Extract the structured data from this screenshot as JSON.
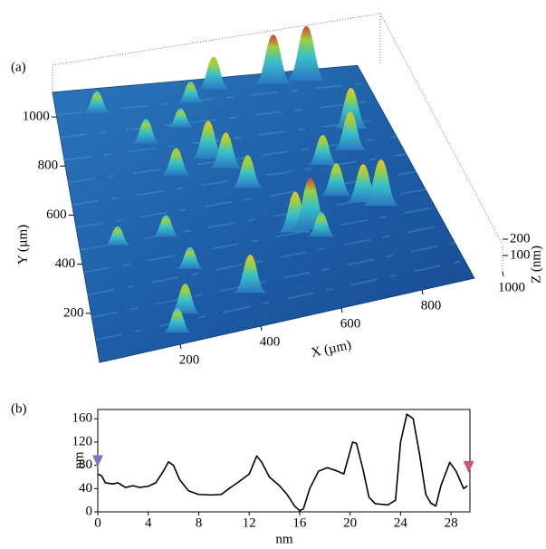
{
  "chart_data": [
    {
      "type": "surface3d",
      "title": "(a)",
      "xlabel": "X (µm)",
      "ylabel": "Y (µm)",
      "zlabel": "Z (nm)",
      "xlim": [
        0,
        1000
      ],
      "ylim": [
        0,
        1100
      ],
      "zlim": [
        0,
        250
      ],
      "xticks": [
        200,
        400,
        600,
        800,
        1000
      ],
      "yticks": [
        200,
        400,
        600,
        800,
        1000
      ],
      "zticks": [
        100,
        200
      ],
      "color": "#1f5fa8",
      "peaks": {
        "x": [
          760,
          660,
          480,
          400,
          120,
          350,
          240,
          820,
          400,
          440,
          300,
          790,
          700,
          480,
          700,
          100,
          230,
          760,
          800,
          560,
          600,
          620,
          270,
          400,
          230,
          200
        ],
        "y": [
          1050,
          1050,
          1050,
          1000,
          1000,
          900,
          850,
          800,
          750,
          700,
          700,
          700,
          650,
          600,
          500,
          450,
          450,
          450,
          420,
          370,
          370,
          330,
          300,
          150,
          120,
          50
        ],
        "z": [
          200,
          180,
          120,
          80,
          80,
          70,
          90,
          150,
          140,
          130,
          100,
          140,
          110,
          120,
          120,
          70,
          80,
          140,
          170,
          150,
          190,
          90,
          80,
          140,
          110,
          90
        ]
      }
    },
    {
      "type": "line",
      "title": "(b)",
      "xlabel": "nm",
      "ylabel": "nm",
      "xlim": [
        0,
        29.5
      ],
      "ylim": [
        0,
        176
      ],
      "xticks": [
        0,
        4,
        8,
        12,
        16,
        20,
        24,
        28
      ],
      "yticks": [
        0,
        40,
        80,
        120,
        160
      ],
      "color": "#000000",
      "x": [
        0,
        0.3,
        0.6,
        1.2,
        1.6,
        2.2,
        2.8,
        3.3,
        4,
        4.6,
        5.2,
        5.6,
        6,
        6.5,
        7.2,
        8,
        9,
        9.8,
        10.4,
        11.2,
        12,
        12.6,
        13,
        13.6,
        14.4,
        15,
        15.6,
        16,
        16.3,
        16.8,
        17.5,
        18.2,
        19,
        19.5,
        20.2,
        20.5,
        21,
        21.5,
        22,
        23,
        23.6,
        24,
        24.5,
        25,
        25.5,
        26,
        26.4,
        26.8,
        27.2,
        27.9,
        28.4,
        29,
        29.3
      ],
      "values": [
        65,
        62,
        50,
        48,
        50,
        42,
        45,
        42,
        44,
        50,
        70,
        86,
        80,
        55,
        36,
        30,
        29,
        30,
        40,
        52,
        65,
        96,
        85,
        60,
        45,
        30,
        10,
        2,
        5,
        40,
        70,
        76,
        70,
        65,
        120,
        118,
        75,
        25,
        14,
        12,
        20,
        120,
        168,
        160,
        100,
        30,
        15,
        10,
        45,
        85,
        70,
        40,
        45
      ],
      "markers": {
        "x": [
          0,
          29.4
        ],
        "y": [
          85,
          75
        ],
        "colors": [
          "#7878c8",
          "#c85a6e"
        ]
      }
    }
  ]
}
